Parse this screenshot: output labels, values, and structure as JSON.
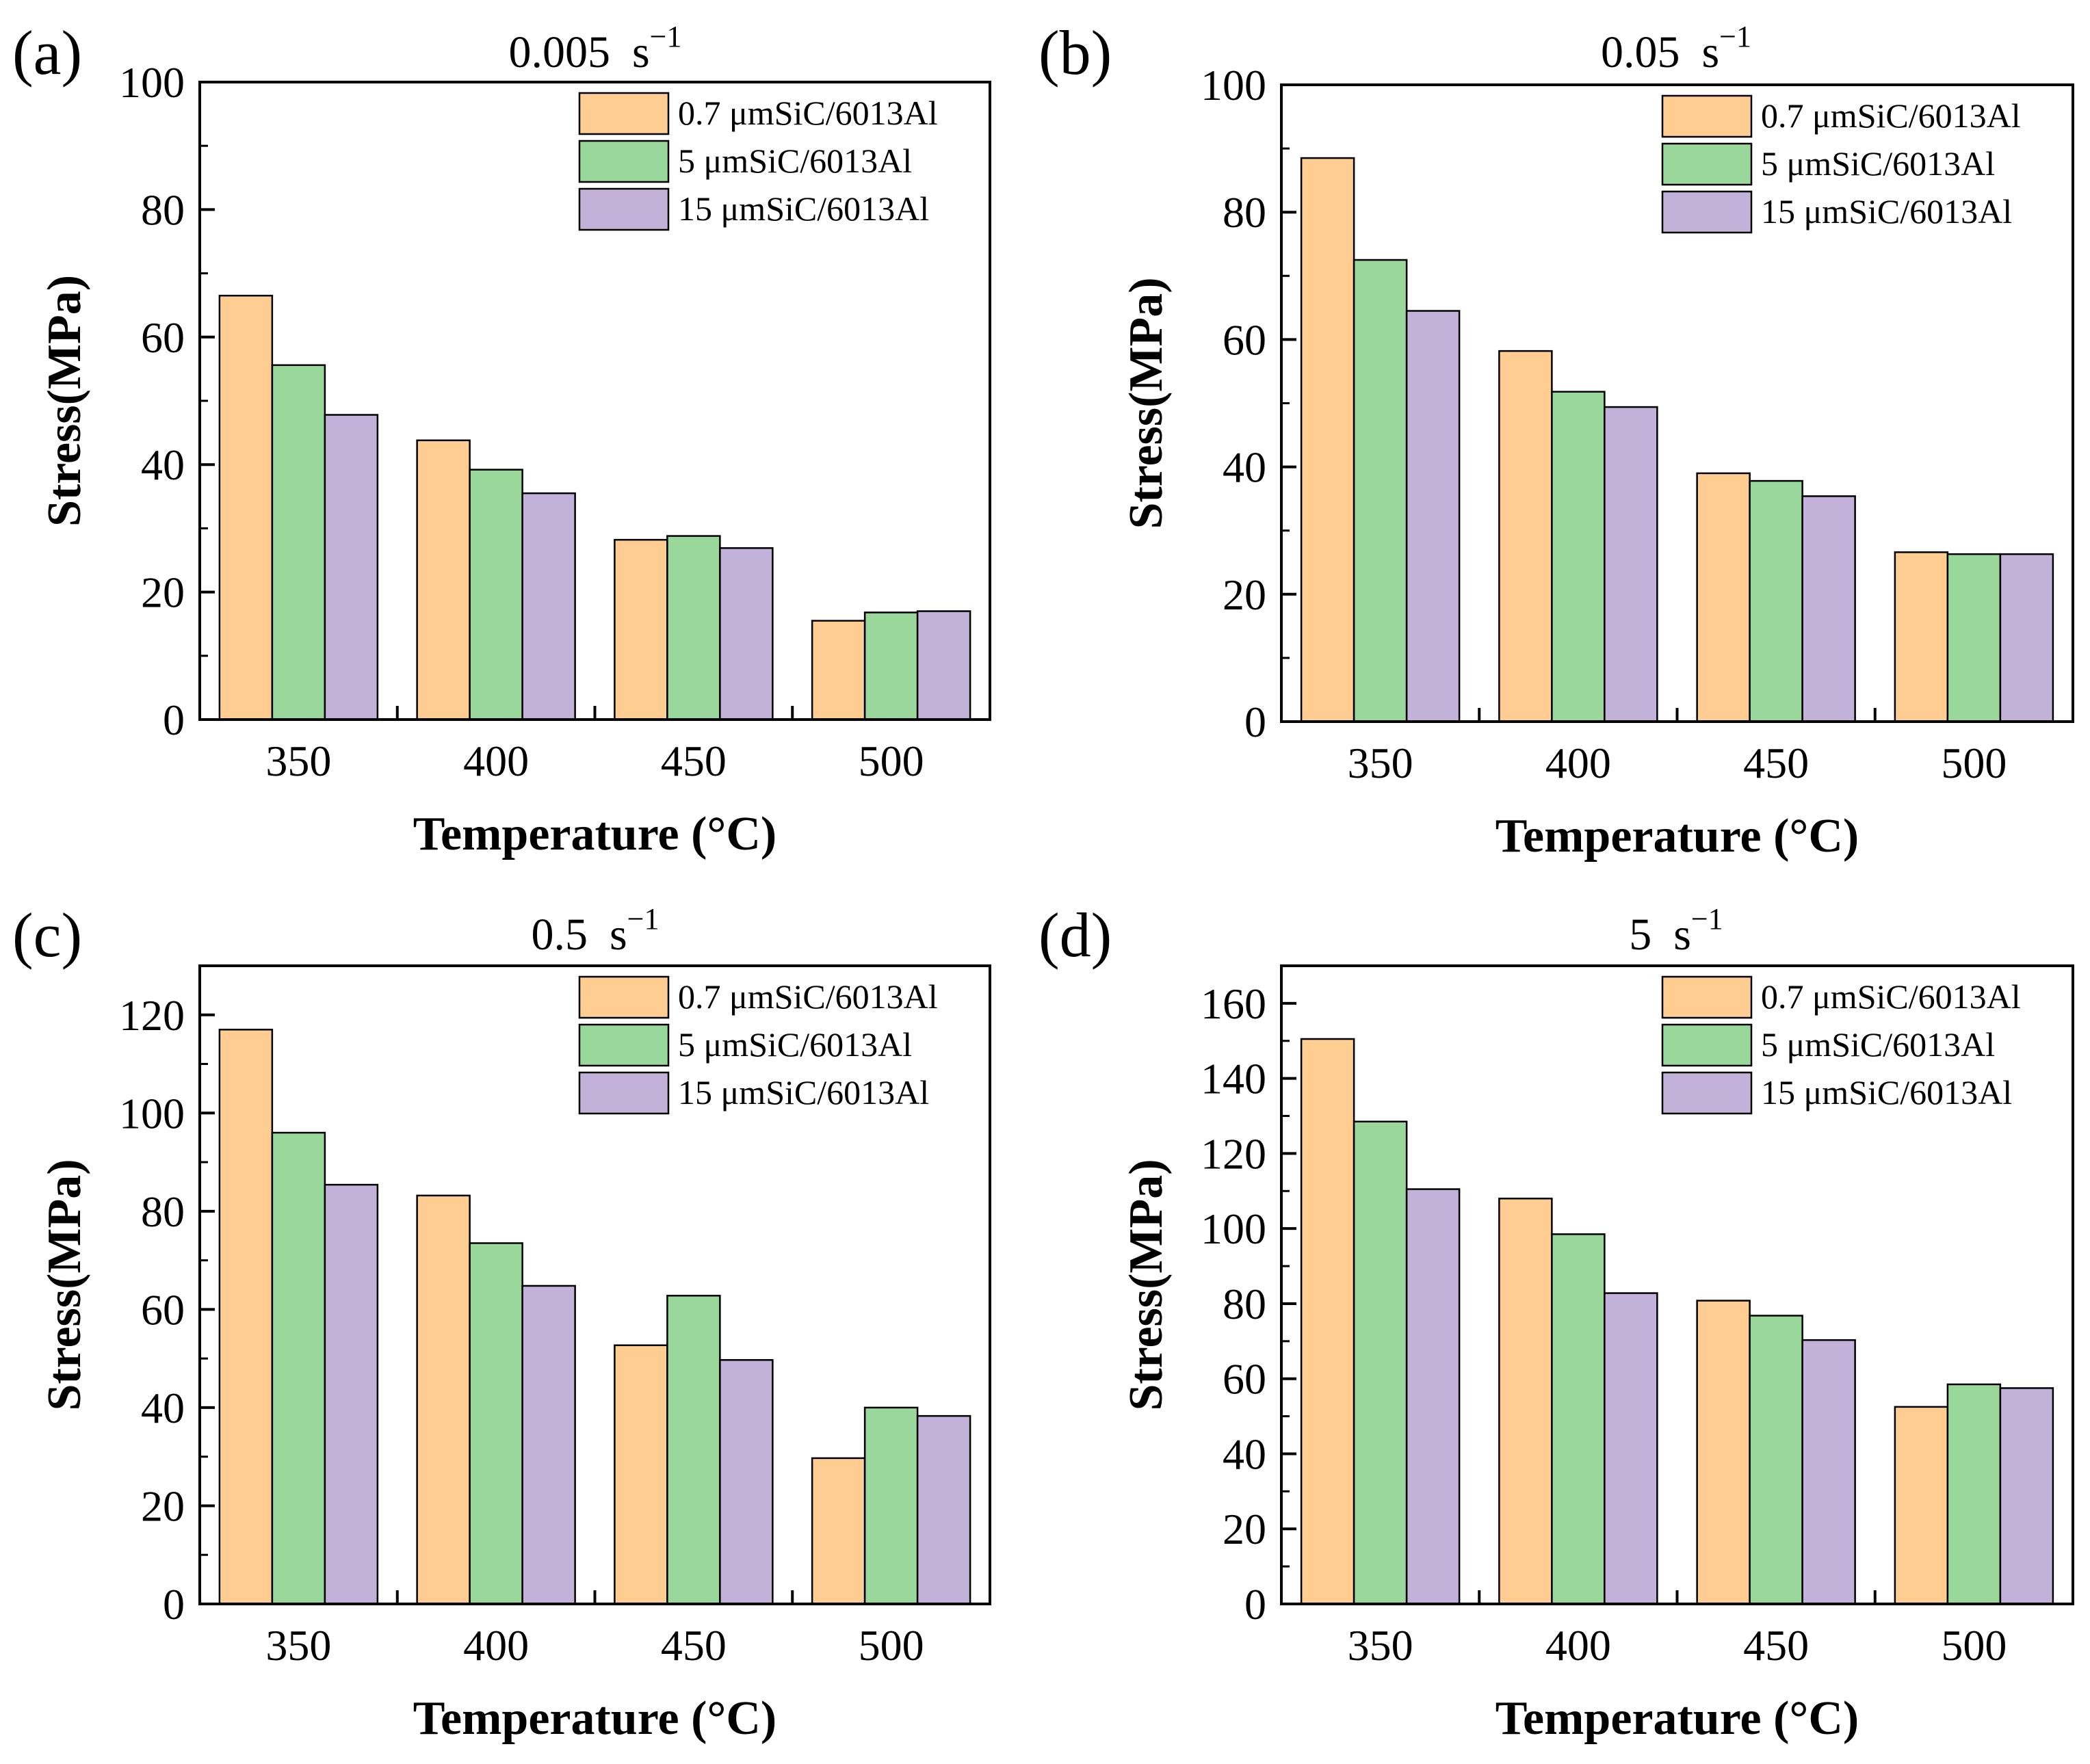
{
  "chart_data": [
    {
      "type": "bar",
      "panel_label": "(a)",
      "title_main": "0.005",
      "title_unit": "s",
      "title_exp": "−1",
      "xlabel": "Temperature (°C)",
      "ylabel": "Stress(MPa)",
      "ylim": [
        0,
        100
      ],
      "yticks": [
        0,
        20,
        40,
        60,
        80,
        100
      ],
      "categories": [
        "350",
        "400",
        "450",
        "500"
      ],
      "legend_position": "top-right",
      "series": [
        {
          "name": "0.7 μmSiC/6013Al",
          "color": "#FFCC91",
          "values": [
            66.5,
            43.8,
            28.2,
            15.5
          ]
        },
        {
          "name": "5 μmSiC/6013Al",
          "color": "#9AD79B",
          "values": [
            55.6,
            39.2,
            28.8,
            16.8
          ]
        },
        {
          "name": "15 μmSiC/6013Al",
          "color": "#C2B1D8",
          "values": [
            47.8,
            35.5,
            26.9,
            17.0
          ]
        }
      ]
    },
    {
      "type": "bar",
      "panel_label": "(b)",
      "title_main": "0.05",
      "title_unit": "s",
      "title_exp": "−1",
      "xlabel": "Temperature (°C)",
      "ylabel": "Stress(MPa)",
      "ylim": [
        0,
        100
      ],
      "yticks": [
        0,
        20,
        40,
        60,
        80,
        100
      ],
      "categories": [
        "350",
        "400",
        "450",
        "500"
      ],
      "legend_position": "top-right",
      "series": [
        {
          "name": "0.7 μmSiC/6013Al",
          "color": "#FFCC91",
          "values": [
            88.5,
            58.2,
            39.0,
            26.6
          ]
        },
        {
          "name": "5 μmSiC/6013Al",
          "color": "#9AD79B",
          "values": [
            72.5,
            51.8,
            37.8,
            26.3
          ]
        },
        {
          "name": "15 μmSiC/6013Al",
          "color": "#C2B1D8",
          "values": [
            64.5,
            49.4,
            35.4,
            26.3
          ]
        }
      ]
    },
    {
      "type": "bar",
      "panel_label": "(c)",
      "title_main": "0.5",
      "title_unit": "s",
      "title_exp": "−1",
      "xlabel": "Temperature (°C)",
      "ylabel": "Stress(MPa)",
      "ylim": [
        0,
        130
      ],
      "yticks": [
        0,
        20,
        40,
        60,
        80,
        100,
        120
      ],
      "categories": [
        "350",
        "400",
        "450",
        "500"
      ],
      "legend_position": "top-right",
      "series": [
        {
          "name": "0.7 μmSiC/6013Al",
          "color": "#FFCC91",
          "values": [
            117.0,
            83.2,
            52.7,
            29.7
          ]
        },
        {
          "name": "5 μmSiC/6013Al",
          "color": "#9AD79B",
          "values": [
            96.0,
            73.5,
            62.8,
            40.0
          ]
        },
        {
          "name": "15 μmSiC/6013Al",
          "color": "#C2B1D8",
          "values": [
            85.4,
            64.8,
            49.7,
            38.3
          ]
        }
      ]
    },
    {
      "type": "bar",
      "panel_label": "(d)",
      "title_main": "5",
      "title_unit": "s",
      "title_exp": "−1",
      "xlabel": "Temperature (°C)",
      "ylabel": "Stress(MPa)",
      "ylim": [
        0,
        170
      ],
      "yticks": [
        0,
        20,
        40,
        60,
        80,
        100,
        120,
        140,
        160
      ],
      "categories": [
        "350",
        "400",
        "450",
        "500"
      ],
      "legend_position": "top-right",
      "series": [
        {
          "name": "0.7 μmSiC/6013Al",
          "color": "#FFCC91",
          "values": [
            150.5,
            108.0,
            80.8,
            52.5
          ]
        },
        {
          "name": "5 μmSiC/6013Al",
          "color": "#9AD79B",
          "values": [
            128.5,
            98.5,
            76.8,
            58.5
          ]
        },
        {
          "name": "15 μmSiC/6013Al",
          "color": "#C2B1D8",
          "values": [
            110.5,
            82.8,
            70.3,
            57.5
          ]
        }
      ]
    }
  ]
}
